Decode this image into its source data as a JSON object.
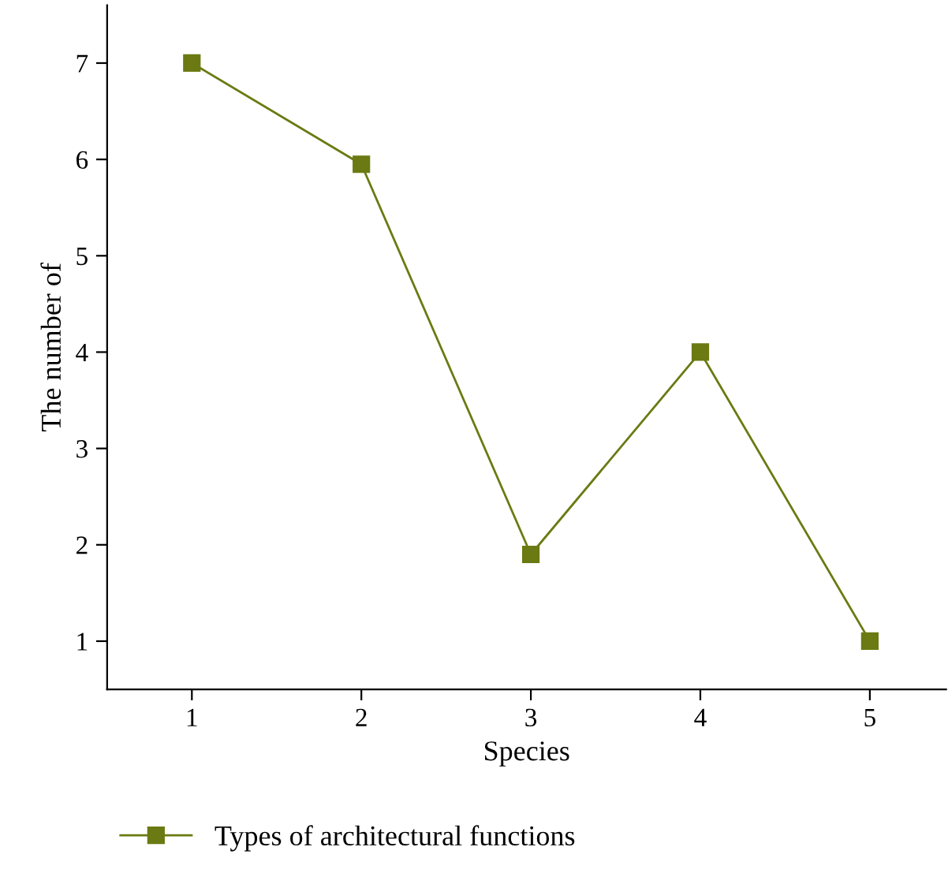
{
  "chart_data": {
    "type": "line",
    "xlabel": "Species",
    "ylabel": "The number of",
    "x": [
      1,
      2,
      3,
      4,
      5
    ],
    "series": [
      {
        "name": "Types of architectural functions",
        "color": "#6b7a12",
        "values": [
          7,
          5.95,
          1.9,
          4,
          1
        ]
      }
    ],
    "xlim": [
      0.5,
      5.45
    ],
    "ylim": [
      0.5,
      7.6
    ],
    "xticks": [
      1,
      2,
      3,
      4,
      5
    ],
    "yticks": [
      1,
      2,
      3,
      4,
      5,
      6,
      7
    ],
    "marker": "square",
    "line_style": "solid",
    "grid": false,
    "legend": "bottom left"
  }
}
